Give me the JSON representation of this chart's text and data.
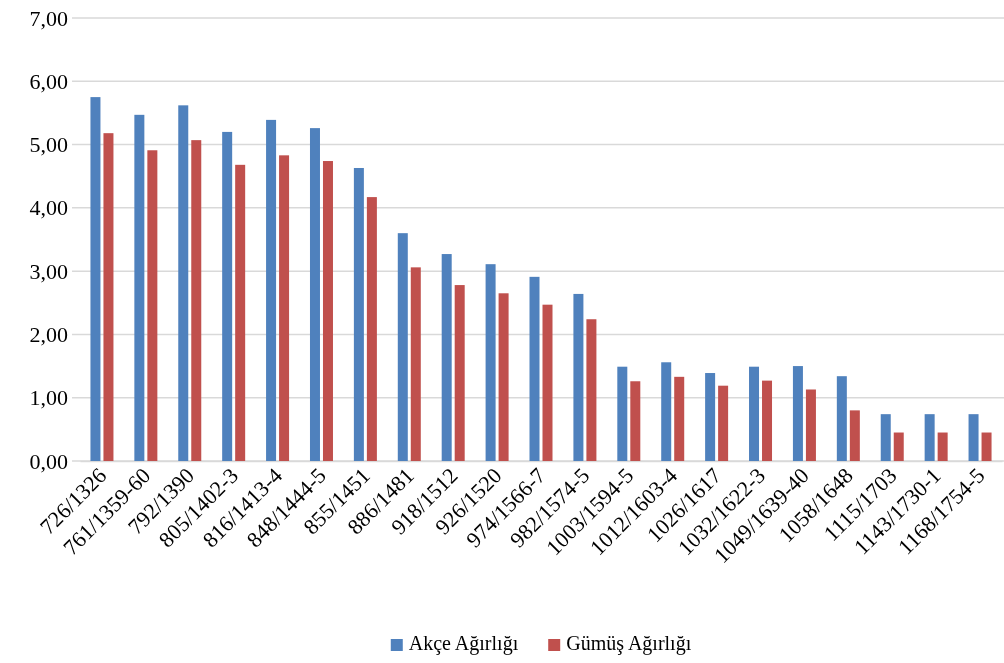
{
  "chart_data": {
    "type": "bar",
    "categories": [
      "726/1326",
      "761/1359-60",
      "792/1390",
      "805/1402-3",
      "816/1413-4",
      "848/1444-5",
      "855/1451",
      "886/1481",
      "918/1512",
      "926/1520",
      "974/1566-7",
      "982/1574-5",
      "1003/1594-5",
      "1012/1603-4",
      "1026/1617",
      "1032/1622-3",
      "1049/1639-40",
      "1058/1648",
      "1115/1703",
      "1143/1730-1",
      "1168/1754-5"
    ],
    "series": [
      {
        "name": "Akçe Ağırlığı",
        "color": "#4f81bd",
        "values": [
          5.75,
          5.47,
          5.62,
          5.2,
          5.39,
          5.26,
          4.63,
          3.6,
          3.27,
          3.11,
          2.91,
          2.64,
          1.49,
          1.56,
          1.39,
          1.49,
          1.5,
          1.34,
          0.74,
          0.74,
          0.74
        ]
      },
      {
        "name": "Gümüş Ağırlığı",
        "color": "#c0504d",
        "values": [
          5.18,
          4.91,
          5.07,
          4.68,
          4.83,
          4.74,
          4.17,
          3.06,
          2.78,
          2.65,
          2.47,
          2.24,
          1.26,
          1.33,
          1.19,
          1.27,
          1.13,
          0.8,
          0.45,
          0.45,
          0.45
        ]
      }
    ],
    "ylim": [
      0,
      7
    ],
    "yticks": [
      {
        "value": 0,
        "label": "0,00"
      },
      {
        "value": 1,
        "label": "1,00"
      },
      {
        "value": 2,
        "label": "2,00"
      },
      {
        "value": 3,
        "label": "3,00"
      },
      {
        "value": 4,
        "label": "4,00"
      },
      {
        "value": 5,
        "label": "5,00"
      },
      {
        "value": 6,
        "label": "6,00"
      },
      {
        "value": 7,
        "label": "7,00"
      }
    ],
    "grid": "y",
    "legend": "bottom"
  }
}
